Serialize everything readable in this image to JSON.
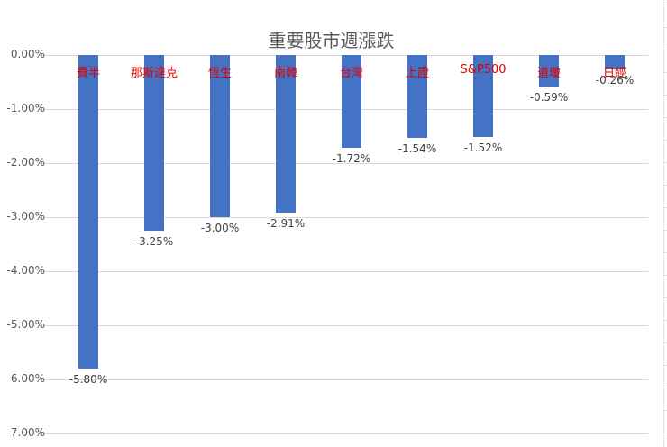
{
  "chart_data": {
    "type": "bar",
    "title": "重要股市週漲跌",
    "categories": [
      "費半",
      "那斯達克",
      "恆生",
      "南韓",
      "台灣",
      "上證",
      "S&P500",
      "道瓊",
      "日經"
    ],
    "values": [
      -5.8,
      -3.25,
      -3.0,
      -2.91,
      -1.72,
      -1.54,
      -1.52,
      -0.59,
      -0.26
    ],
    "value_labels": [
      "-5.80%",
      "-3.25%",
      "-3.00%",
      "-2.91%",
      "-1.72%",
      "-1.54%",
      "-1.52%",
      "-0.59%",
      "-0.26%"
    ],
    "unit": "%",
    "xlabel": "",
    "ylabel": "",
    "ylim": [
      -7.0,
      0.0
    ],
    "yticks": [
      "0.00%",
      "-1.00%",
      "-2.00%",
      "-3.00%",
      "-4.00%",
      "-5.00%",
      "-6.00%",
      "-7.00%"
    ],
    "grid": true,
    "legend": "none",
    "bar_color": "#4472c4",
    "category_label_color": "#e00000",
    "category_label_position": "top, inside plot"
  }
}
